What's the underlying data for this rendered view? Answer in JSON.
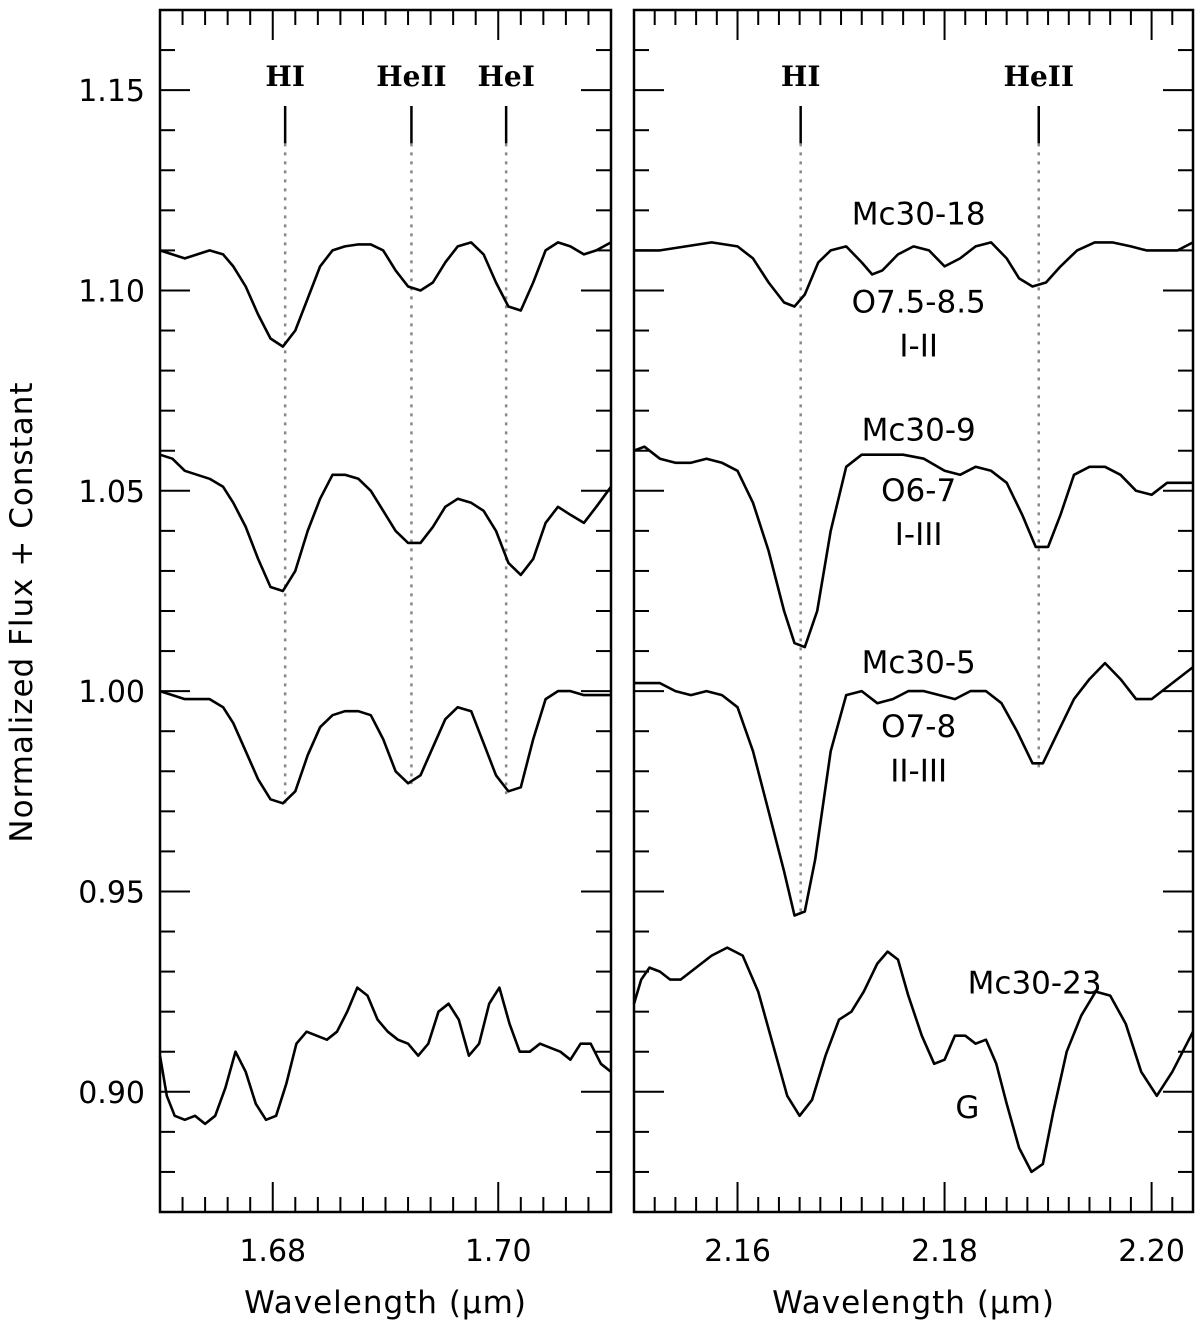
{
  "figure": {
    "ylabel": "Normalized Flux + Constant"
  },
  "chart_data": [
    {
      "type": "line",
      "panel": "left",
      "xlabel": "Wavelength (μm)",
      "ylabel": "Normalized Flux + Constant",
      "xlim": [
        1.67,
        1.71
      ],
      "ylim": [
        0.87,
        1.17
      ],
      "xticks_major": [
        1.68,
        1.7
      ],
      "xtick_labels": [
        "1.68",
        "1.70"
      ],
      "xticks_minor": [
        1.672,
        1.674,
        1.676,
        1.678,
        1.682,
        1.684,
        1.686,
        1.688,
        1.69,
        1.692,
        1.694,
        1.696,
        1.698,
        1.702,
        1.704,
        1.706,
        1.708
      ],
      "yticks_major": [
        0.9,
        0.95,
        1.0,
        1.05,
        1.1,
        1.15
      ],
      "ytick_labels": [
        "0.90",
        "0.95",
        "1.00",
        "1.05",
        "1.10",
        "1.15"
      ],
      "yticks_minor": [
        0.88,
        0.89,
        0.91,
        0.92,
        0.93,
        0.94,
        0.96,
        0.97,
        0.98,
        0.99,
        1.01,
        1.02,
        1.03,
        1.04,
        1.06,
        1.07,
        1.08,
        1.09,
        1.11,
        1.12,
        1.13,
        1.14,
        1.16
      ],
      "line_markers": [
        {
          "label": "HI",
          "x": 1.6811,
          "y_top": 1.1367,
          "y_bottom": 0.9718
        },
        {
          "label": "HeII",
          "x": 1.6923,
          "y_top": 1.1367,
          "y_bottom": 0.9768
        },
        {
          "label": "HeI",
          "x": 1.7007,
          "y_top": 1.1367,
          "y_bottom": 0.9743
        }
      ],
      "series": [
        {
          "x": [
            1.67,
            1.6711,
            1.6722,
            1.6733,
            1.6744,
            1.6756,
            1.6765,
            1.6776,
            1.6787,
            1.6798,
            1.6809,
            1.682,
            1.6831,
            1.6842,
            1.6853,
            1.6864,
            1.6876,
            1.6887,
            1.6898,
            1.6909,
            1.692,
            1.6931,
            1.6942,
            1.6953,
            1.6964,
            1.6976,
            1.6987,
            1.6998,
            1.7009,
            1.702,
            1.7031,
            1.7042,
            1.7053,
            1.7064,
            1.7076,
            1.7087,
            1.71
          ],
          "y": [
            1.11,
            1.109,
            1.108,
            1.109,
            1.11,
            1.109,
            1.106,
            1.101,
            1.094,
            1.088,
            1.086,
            1.09,
            1.098,
            1.106,
            1.11,
            1.111,
            1.1115,
            1.1115,
            1.11,
            1.105,
            1.101,
            1.1,
            1.102,
            1.107,
            1.111,
            1.112,
            1.109,
            1.102,
            1.096,
            1.095,
            1.102,
            1.11,
            1.112,
            1.111,
            1.109,
            1.11,
            1.112
          ]
        },
        {
          "x": [
            1.67,
            1.6711,
            1.6722,
            1.6733,
            1.6744,
            1.6756,
            1.6765,
            1.6776,
            1.6787,
            1.6798,
            1.6809,
            1.682,
            1.6831,
            1.6842,
            1.6853,
            1.6864,
            1.6876,
            1.6887,
            1.6898,
            1.6909,
            1.692,
            1.6931,
            1.6942,
            1.6953,
            1.6964,
            1.6976,
            1.6987,
            1.6998,
            1.7009,
            1.702,
            1.7031,
            1.7042,
            1.7053,
            1.7064,
            1.7076,
            1.7087,
            1.71
          ],
          "y": [
            1.059,
            1.058,
            1.055,
            1.054,
            1.053,
            1.051,
            1.047,
            1.041,
            1.033,
            1.026,
            1.025,
            1.03,
            1.04,
            1.048,
            1.054,
            1.054,
            1.053,
            1.05,
            1.045,
            1.04,
            1.037,
            1.037,
            1.041,
            1.046,
            1.048,
            1.047,
            1.045,
            1.04,
            1.032,
            1.029,
            1.033,
            1.042,
            1.046,
            1.044,
            1.042,
            1.046,
            1.051
          ]
        },
        {
          "x": [
            1.67,
            1.6711,
            1.6722,
            1.6733,
            1.6744,
            1.6756,
            1.6765,
            1.6776,
            1.6787,
            1.6798,
            1.6809,
            1.682,
            1.6831,
            1.6842,
            1.6853,
            1.6864,
            1.6876,
            1.6887,
            1.6898,
            1.6909,
            1.692,
            1.6931,
            1.6942,
            1.6953,
            1.6964,
            1.6976,
            1.6987,
            1.6998,
            1.7009,
            1.702,
            1.7031,
            1.7042,
            1.7053,
            1.7064,
            1.7076,
            1.7087,
            1.71
          ],
          "y": [
            1.0,
            0.999,
            0.998,
            0.998,
            0.998,
            0.996,
            0.992,
            0.985,
            0.978,
            0.973,
            0.972,
            0.975,
            0.984,
            0.991,
            0.994,
            0.995,
            0.995,
            0.994,
            0.988,
            0.98,
            0.977,
            0.979,
            0.986,
            0.993,
            0.996,
            0.995,
            0.987,
            0.979,
            0.975,
            0.976,
            0.988,
            0.998,
            1.0,
            1.0,
            0.999,
            0.999,
            0.999
          ]
        },
        {
          "x": [
            1.67,
            1.6706,
            1.6713,
            1.6722,
            1.6731,
            1.674,
            1.6749,
            1.6758,
            1.6767,
            1.6776,
            1.6785,
            1.6794,
            1.6803,
            1.6812,
            1.6821,
            1.683,
            1.6839,
            1.6848,
            1.6857,
            1.6866,
            1.6875,
            1.6884,
            1.6893,
            1.6902,
            1.6911,
            1.692,
            1.6929,
            1.6938,
            1.6947,
            1.6956,
            1.6965,
            1.6974,
            1.6983,
            1.6992,
            1.7001,
            1.701,
            1.7019,
            1.7028,
            1.7037,
            1.7046,
            1.7055,
            1.7064,
            1.7073,
            1.7082,
            1.7091,
            1.71
          ],
          "y": [
            0.909,
            0.899,
            0.894,
            0.893,
            0.894,
            0.892,
            0.894,
            0.901,
            0.91,
            0.905,
            0.897,
            0.893,
            0.894,
            0.902,
            0.912,
            0.915,
            0.914,
            0.913,
            0.915,
            0.92,
            0.926,
            0.924,
            0.918,
            0.915,
            0.913,
            0.912,
            0.909,
            0.912,
            0.92,
            0.922,
            0.918,
            0.909,
            0.912,
            0.922,
            0.926,
            0.917,
            0.91,
            0.91,
            0.912,
            0.911,
            0.91,
            0.908,
            0.912,
            0.912,
            0.907,
            0.905
          ]
        }
      ]
    },
    {
      "type": "line",
      "panel": "right",
      "xlabel": "Wavelength (μm)",
      "xlim": [
        2.15,
        2.204
      ],
      "ylim": [
        0.87,
        1.17
      ],
      "xticks_major": [
        2.16,
        2.18,
        2.2
      ],
      "xtick_labels": [
        "2.16",
        "2.18",
        "2.20"
      ],
      "xticks_minor": [
        2.152,
        2.154,
        2.156,
        2.158,
        2.162,
        2.164,
        2.166,
        2.168,
        2.17,
        2.172,
        2.174,
        2.176,
        2.178,
        2.182,
        2.184,
        2.186,
        2.188,
        2.19,
        2.192,
        2.194,
        2.196,
        2.198,
        2.202
      ],
      "yticks_major": [
        0.9,
        0.95,
        1.0,
        1.05,
        1.1,
        1.15
      ],
      "yticks_minor": [
        0.88,
        0.89,
        0.91,
        0.92,
        0.93,
        0.94,
        0.96,
        0.97,
        0.98,
        0.99,
        1.01,
        1.02,
        1.03,
        1.04,
        1.06,
        1.07,
        1.08,
        1.09,
        1.11,
        1.12,
        1.13,
        1.14,
        1.16
      ],
      "line_markers": [
        {
          "label": "HI",
          "x": 2.1661,
          "y_top": 1.1367,
          "y_bottom": 0.9436
        },
        {
          "label": "HeII",
          "x": 2.1891,
          "y_top": 1.1367,
          "y_bottom": 0.9808
        }
      ],
      "star_labels": [
        {
          "text": "Mc30-18",
          "x": 2.1775,
          "y": 1.1165
        },
        {
          "text": "O7.5-8.5",
          "x": 2.1775,
          "y": 1.0945
        },
        {
          "text": "I-II",
          "x": 2.1775,
          "y": 1.0835
        },
        {
          "text": "Mc30-9",
          "x": 2.1775,
          "y": 1.0625
        },
        {
          "text": "O6-7",
          "x": 2.1775,
          "y": 1.0475
        },
        {
          "text": "I-III",
          "x": 2.1775,
          "y": 1.0365
        },
        {
          "text": "Mc30-5",
          "x": 2.1775,
          "y": 1.0045
        },
        {
          "text": "O7-8",
          "x": 2.1775,
          "y": 0.9885
        },
        {
          "text": "II-III",
          "x": 2.1775,
          "y": 0.9775
        },
        {
          "text": "Mc30-23",
          "x": 2.1887,
          "y": 0.9245
        },
        {
          "text": "G",
          "x": 2.1822,
          "y": 0.8935
        }
      ],
      "series": [
        {
          "x": [
            2.15,
            2.1525,
            2.155,
            2.1575,
            2.16,
            2.1615,
            2.163,
            2.1645,
            2.1655,
            2.1665,
            2.1678,
            2.169,
            2.1705,
            2.172,
            2.173,
            2.174,
            2.1755,
            2.177,
            2.1785,
            2.18,
            2.1815,
            2.183,
            2.1845,
            2.186,
            2.1872,
            2.1885,
            2.1898,
            2.1912,
            2.1928,
            2.1945,
            2.1962,
            2.198,
            2.1995,
            2.201,
            2.2025,
            2.204
          ],
          "y": [
            1.11,
            1.11,
            1.111,
            1.112,
            1.111,
            1.108,
            1.102,
            1.097,
            1.096,
            1.099,
            1.107,
            1.11,
            1.111,
            1.107,
            1.104,
            1.105,
            1.109,
            1.111,
            1.11,
            1.106,
            1.108,
            1.111,
            1.112,
            1.108,
            1.103,
            1.101,
            1.102,
            1.106,
            1.11,
            1.112,
            1.112,
            1.111,
            1.11,
            1.11,
            1.11,
            1.112
          ]
        },
        {
          "x": [
            2.15,
            2.151,
            2.1525,
            2.154,
            2.1555,
            2.157,
            2.1585,
            2.16,
            2.1615,
            2.163,
            2.1645,
            2.1655,
            2.1665,
            2.1677,
            2.169,
            2.1705,
            2.172,
            2.174,
            2.176,
            2.178,
            2.18,
            2.1815,
            2.183,
            2.1845,
            2.186,
            2.1875,
            2.1888,
            2.19,
            2.1912,
            2.1925,
            2.194,
            2.1955,
            2.197,
            2.1985,
            2.2,
            2.2015,
            2.204
          ],
          "y": [
            1.06,
            1.061,
            1.058,
            1.057,
            1.057,
            1.058,
            1.057,
            1.055,
            1.047,
            1.035,
            1.02,
            1.012,
            1.011,
            1.02,
            1.04,
            1.056,
            1.059,
            1.059,
            1.059,
            1.058,
            1.055,
            1.054,
            1.056,
            1.055,
            1.052,
            1.044,
            1.036,
            1.036,
            1.044,
            1.054,
            1.056,
            1.056,
            1.054,
            1.05,
            1.049,
            1.052,
            1.052
          ]
        },
        {
          "x": [
            2.15,
            2.151,
            2.1525,
            2.154,
            2.1555,
            2.157,
            2.1585,
            2.16,
            2.1615,
            2.163,
            2.1645,
            2.1655,
            2.1665,
            2.1675,
            2.169,
            2.1705,
            2.172,
            2.1735,
            2.175,
            2.1765,
            2.178,
            2.1795,
            2.181,
            2.1825,
            2.184,
            2.1855,
            2.187,
            2.1885,
            2.1895,
            2.191,
            2.1925,
            2.194,
            2.1955,
            2.197,
            2.1985,
            2.2,
            2.202,
            2.204
          ],
          "y": [
            1.002,
            1.002,
            1.002,
            1.0,
            0.999,
            1.0,
            0.999,
            0.996,
            0.985,
            0.97,
            0.955,
            0.944,
            0.945,
            0.958,
            0.985,
            0.999,
            1.0,
            0.997,
            0.998,
            1.0,
            1.0,
            0.999,
            0.998,
            1.0,
            1.0,
            0.997,
            0.99,
            0.982,
            0.982,
            0.99,
            0.998,
            1.003,
            1.007,
            1.003,
            0.998,
            0.998,
            1.002,
            1.006
          ]
        },
        {
          "x": [
            2.15,
            2.1507,
            2.1515,
            2.1525,
            2.1535,
            2.1545,
            2.156,
            2.1575,
            2.159,
            2.1605,
            2.162,
            2.1635,
            2.1648,
            2.166,
            2.1672,
            2.1685,
            2.1698,
            2.171,
            2.1722,
            2.1735,
            2.1745,
            2.1755,
            2.1765,
            2.1778,
            2.179,
            2.18,
            2.181,
            2.182,
            2.183,
            2.184,
            2.185,
            2.186,
            2.1872,
            2.1884,
            2.1895,
            2.1905,
            2.1918,
            2.1932,
            2.1946,
            2.196,
            2.1975,
            2.199,
            2.2005,
            2.202,
            2.204
          ],
          "y": [
            0.922,
            0.928,
            0.931,
            0.93,
            0.928,
            0.928,
            0.931,
            0.934,
            0.936,
            0.934,
            0.925,
            0.911,
            0.899,
            0.894,
            0.898,
            0.909,
            0.918,
            0.92,
            0.925,
            0.932,
            0.935,
            0.933,
            0.924,
            0.914,
            0.907,
            0.908,
            0.914,
            0.914,
            0.912,
            0.913,
            0.907,
            0.897,
            0.886,
            0.88,
            0.882,
            0.895,
            0.91,
            0.919,
            0.925,
            0.924,
            0.917,
            0.905,
            0.899,
            0.905,
            0.915
          ]
        }
      ]
    }
  ]
}
